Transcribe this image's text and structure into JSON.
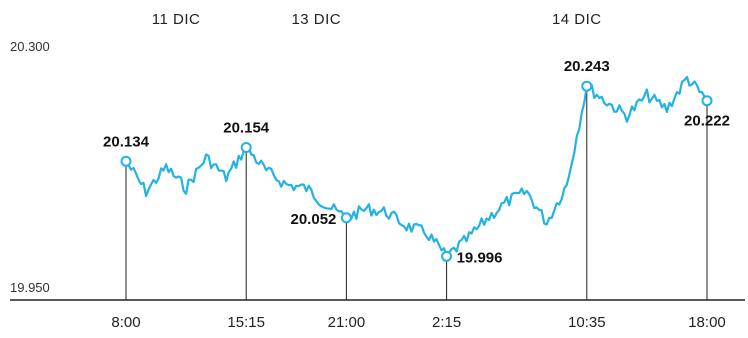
{
  "colors": {
    "line": "#22b2e3",
    "axis": "#222222",
    "text": "#222222"
  },
  "chart_data": {
    "type": "line",
    "ylim": [
      19.95,
      20.3
    ],
    "yticks": [
      {
        "value": 19.95,
        "label": "19.950"
      },
      {
        "value": 20.3,
        "label": "20.300"
      }
    ],
    "date_labels": [
      {
        "label": "11 DIC",
        "at_point": 2.5
      },
      {
        "label": "13 DIC",
        "at_point": 9.5
      },
      {
        "label": "14 DIC",
        "at_point": 22.5
      }
    ],
    "callouts": [
      {
        "point": 0,
        "x_label": "8:00",
        "value_label": "20.134",
        "label_pos": "above"
      },
      {
        "point": 6,
        "x_label": "15:15",
        "value_label": "20.154",
        "label_pos": "above"
      },
      {
        "point": 11,
        "x_label": "21:00",
        "value_label": "20.052",
        "label_pos": "left"
      },
      {
        "point": 16,
        "x_label": "2:15",
        "value_label": "19.996",
        "label_pos": "right"
      },
      {
        "point": 23,
        "x_label": "10:35",
        "value_label": "20.243",
        "label_pos": "above"
      },
      {
        "point": 29,
        "x_label": "18:00",
        "value_label": "20.222",
        "label_pos": "below"
      }
    ],
    "series": [
      {
        "values": [
          20.134,
          20.09,
          20.125,
          20.095,
          20.14,
          20.11,
          20.154,
          20.12,
          20.1,
          20.095,
          20.07,
          20.052,
          20.065,
          20.06,
          20.04,
          20.03,
          19.996,
          20.02,
          20.05,
          20.075,
          20.09,
          20.045,
          20.1,
          20.243,
          20.22,
          20.2,
          20.23,
          20.21,
          20.255,
          20.222
        ]
      }
    ]
  }
}
